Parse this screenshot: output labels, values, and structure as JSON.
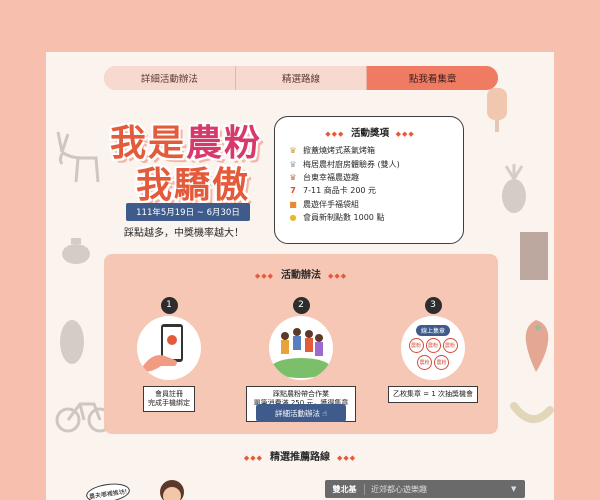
{
  "nav": {
    "tabs": [
      "詳細活動辦法",
      "精選路線",
      "點我看集章"
    ]
  },
  "hero": {
    "title_line1_a": "我是",
    "title_line1_b": "農粉",
    "title_line2": "我驕傲",
    "date": "111年5月19日 ~ 6月30日",
    "tagline": "踩點越多，中獎機率越大！"
  },
  "prizes": {
    "heading": "活動獎項",
    "items": [
      {
        "icon": "crown-icon",
        "label": "掀蓋燒烤式蒸氣烤箱"
      },
      {
        "icon": "crown-icon",
        "label": "梅居農村廚房體驗券 (雙人)"
      },
      {
        "icon": "crown-icon",
        "label": "台東幸福農遊趣"
      },
      {
        "icon": "seven-eleven-icon",
        "label": "7-11 商品卡 200 元"
      },
      {
        "icon": "gift-bag-icon",
        "label": "農遊伴手福袋組"
      },
      {
        "icon": "coin-icon",
        "label": "會員新制點數 1000 點"
      }
    ]
  },
  "activity": {
    "heading": "活動辦法",
    "steps": [
      {
        "num": "1",
        "caption_line1": "會員註冊",
        "caption_line2": "完成手機綁定"
      },
      {
        "num": "2",
        "caption_line1": "踩點農粉帶合作業",
        "caption_line2": "單筆消費滿 250 元，獲得集章乙枚"
      },
      {
        "num": "3",
        "stamp_title": "線上集章",
        "stamp_label": "農粉",
        "caption_line1": "乙枚集章 = 1 次抽獎機會",
        "caption_line2": ""
      }
    ],
    "button": "詳細活動辦法"
  },
  "routes": {
    "heading": "精選推薦路線",
    "region": "雙北基",
    "route": "近郊都心遊樂趣",
    "bubble": "農夫哪裡推坊!"
  },
  "colors": {
    "background": "#f6bfae",
    "accent": "#e35b3b",
    "navy": "#3f5b8b",
    "active_tab": "#f07b63"
  }
}
